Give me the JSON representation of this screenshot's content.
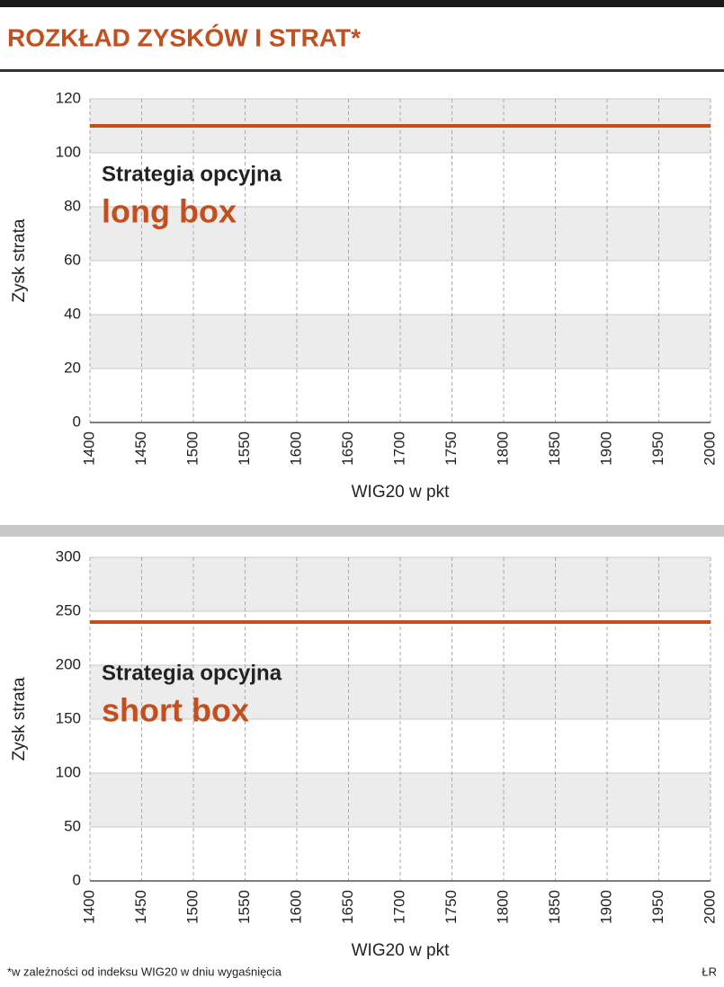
{
  "header": {
    "title": "ROZKŁAD ZYSKÓW I STRAT*"
  },
  "chart_data": [
    {
      "type": "line",
      "x": [
        1400,
        2000
      ],
      "series": [
        {
          "color": "#c24f1d",
          "values": [
            110,
            110
          ]
        }
      ],
      "xlim": [
        1400,
        2000
      ],
      "xticks": [
        1400,
        1450,
        1500,
        1550,
        1600,
        1650,
        1700,
        1750,
        1800,
        1850,
        1900,
        1950,
        2000
      ],
      "ylim": [
        0,
        120
      ],
      "yticks": [
        0,
        20,
        40,
        60,
        80,
        100,
        120
      ],
      "grid": true,
      "x_label": "WIG20 w pkt",
      "y_label": "Zysk strata",
      "annotations": [
        "Strategia opcyjna",
        "long box"
      ]
    },
    {
      "type": "line",
      "x": [
        1400,
        2000
      ],
      "series": [
        {
          "color": "#c24f1d",
          "values": [
            240,
            240
          ]
        }
      ],
      "xlim": [
        1400,
        2000
      ],
      "xticks": [
        1400,
        1450,
        1500,
        1550,
        1600,
        1650,
        1700,
        1750,
        1800,
        1850,
        1900,
        1950,
        2000
      ],
      "ylim": [
        0,
        300
      ],
      "yticks": [
        0,
        50,
        100,
        150,
        200,
        250,
        300
      ],
      "grid": true,
      "x_label": "WIG20 w pkt",
      "y_label": "Zysk strata",
      "annotations": [
        "Strategia opcyjna",
        "short box"
      ]
    }
  ],
  "footer": {
    "note": "*w zależności od indeksu WIG20 w dniu wygaśnięcia",
    "credit": "ŁR"
  }
}
